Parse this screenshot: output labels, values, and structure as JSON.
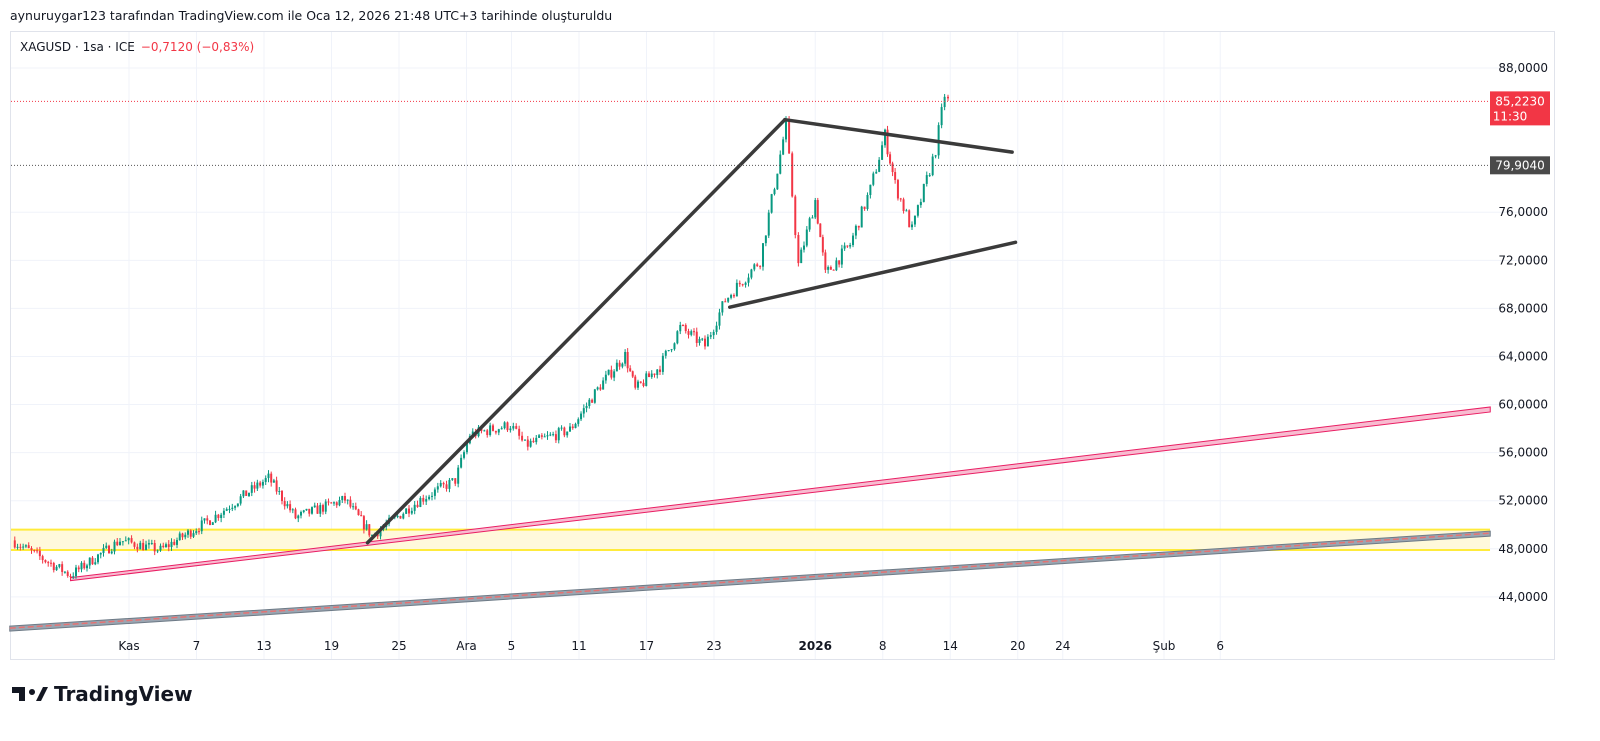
{
  "header": {
    "credit": "aynuruygar123 tarafından TradingView.com ile Oca 12, 2026 21:48 UTC+3 tarihinde oluşturuldu"
  },
  "legend": {
    "symbol": "XAGUSD · 1sa · ICE",
    "change": "−0,7120 (−0,83%)"
  },
  "brand": {
    "name": "TradingView"
  },
  "colors": {
    "up": "#089981",
    "down": "#f23645",
    "drawing": "#3a3a3a",
    "channel": "#e91e63",
    "zone": "#ffeb3b"
  },
  "chart_data": {
    "type": "candlestick",
    "x_unit": "days from Nov 1 2025",
    "ylim": [
      41,
      91
    ],
    "y_ticks": [
      "88,0000",
      "76,0000",
      "72,0000",
      "68,0000",
      "64,0000",
      "60,0000",
      "56,0000",
      "52,0000",
      "48,0000",
      "44,0000"
    ],
    "y_tick_values": [
      88,
      76,
      72,
      68,
      64,
      60,
      56,
      52,
      48,
      44
    ],
    "x_ticks": [
      {
        "d": 0,
        "label": "Kas"
      },
      {
        "d": 6,
        "label": "7"
      },
      {
        "d": 12,
        "label": "13"
      },
      {
        "d": 18,
        "label": "19"
      },
      {
        "d": 24,
        "label": "25"
      },
      {
        "d": 30,
        "label": "Ara"
      },
      {
        "d": 34,
        "label": "5"
      },
      {
        "d": 40,
        "label": "11"
      },
      {
        "d": 46,
        "label": "17"
      },
      {
        "d": 52,
        "label": "23"
      },
      {
        "d": 61,
        "label": "2026"
      },
      {
        "d": 67,
        "label": "8"
      },
      {
        "d": 73,
        "label": "14"
      },
      {
        "d": 79,
        "label": "20"
      },
      {
        "d": 83,
        "label": "24"
      },
      {
        "d": 92,
        "label": "Şub"
      },
      {
        "d": 97,
        "label": "6"
      }
    ],
    "price_path": [
      [
        -10.4,
        48.7
      ],
      [
        -5.2,
        45.8
      ],
      [
        -0.8,
        48.7
      ],
      [
        2.8,
        47.9
      ],
      [
        7.2,
        50.4
      ],
      [
        12.4,
        53.9
      ],
      [
        14.8,
        50.6
      ],
      [
        19.2,
        52.1
      ],
      [
        21.6,
        49.1
      ],
      [
        25.9,
        52.1
      ],
      [
        29,
        53.7
      ],
      [
        30.3,
        57.5
      ],
      [
        33.9,
        58.3
      ],
      [
        35.2,
        56.6
      ],
      [
        39.2,
        57.9
      ],
      [
        41.9,
        61.6
      ],
      [
        44.1,
        64.1
      ],
      [
        45,
        61.2
      ],
      [
        47.2,
        63.2
      ],
      [
        49,
        66.4
      ],
      [
        51.2,
        64.9
      ],
      [
        53,
        68.7
      ],
      [
        56.1,
        72
      ],
      [
        58.4,
        83.3
      ],
      [
        59.5,
        71.6
      ],
      [
        61,
        77
      ],
      [
        61.9,
        70.8
      ],
      [
        64.1,
        73.3
      ],
      [
        65.9,
        77.9
      ],
      [
        67.2,
        82.4
      ],
      [
        68.1,
        78.3
      ],
      [
        69.6,
        74.5
      ],
      [
        71.7,
        81.2
      ],
      [
        72.5,
        85.8
      ],
      [
        72.8,
        85.2
      ]
    ],
    "last_price": {
      "value": 85.223,
      "label": "85,2230",
      "countdown": "11:30"
    },
    "level": {
      "value": 79.904,
      "label": "79,9040"
    },
    "drawings": {
      "trend_lines": [
        [
          [
            21.2,
            48.5
          ],
          [
            58.3,
            83.7
          ]
        ],
        [
          [
            58.3,
            83.7
          ],
          [
            78.5,
            81.0
          ]
        ],
        [
          [
            53.4,
            68.1
          ],
          [
            78.8,
            73.5
          ]
        ]
      ],
      "channel_upper": [
        [
          -5.2,
          45.6
        ],
        [
          121,
          59.8
        ]
      ],
      "channel_lower": [
        [
          -10.6,
          41.4
        ],
        [
          121,
          49.3
        ]
      ],
      "zone": [
        47.9,
        49.6
      ]
    }
  }
}
